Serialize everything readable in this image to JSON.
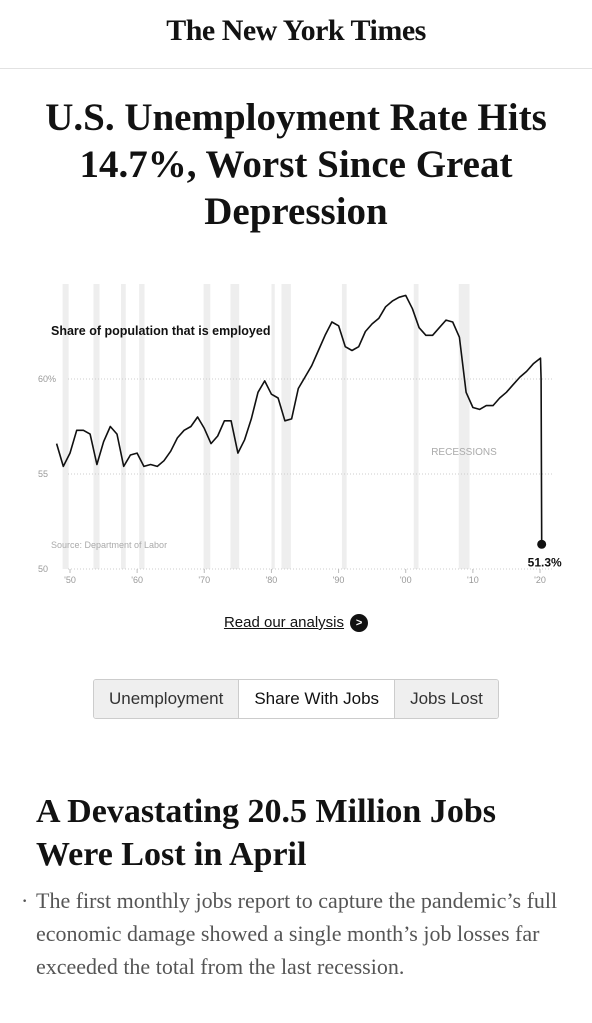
{
  "header": {
    "logo": "The New York Times"
  },
  "headline": "U.S. Unemployment Rate Hits 14.7%, Worst Since Great Depression",
  "chart_data": {
    "type": "line",
    "chart_label": "Share of population that is employed",
    "source": "Source: Department of Labor",
    "recessions_label": "RECESSIONS",
    "x": [
      1948,
      1949,
      1950,
      1951,
      1952,
      1953,
      1954,
      1955,
      1956,
      1957,
      1958,
      1959,
      1960,
      1961,
      1962,
      1963,
      1964,
      1965,
      1966,
      1967,
      1968,
      1969,
      1970,
      1971,
      1972,
      1973,
      1974,
      1975,
      1976,
      1977,
      1978,
      1979,
      1980,
      1981,
      1982,
      1983,
      1984,
      1985,
      1986,
      1987,
      1988,
      1989,
      1990,
      1991,
      1992,
      1993,
      1994,
      1995,
      1996,
      1997,
      1998,
      1999,
      2000,
      2001,
      2002,
      2003,
      2004,
      2005,
      2006,
      2007,
      2008,
      2009,
      2010,
      2011,
      2012,
      2013,
      2014,
      2015,
      2016,
      2017,
      2018,
      2019,
      2020.08,
      2020.17,
      2020.25
    ],
    "series": [
      {
        "name": "Share of population that is employed",
        "color": "#111111",
        "values": [
          56.6,
          55.4,
          56.1,
          57.3,
          57.3,
          57.1,
          55.5,
          56.7,
          57.5,
          57.1,
          55.4,
          56.0,
          56.1,
          55.4,
          55.5,
          55.4,
          55.7,
          56.2,
          56.9,
          57.3,
          57.5,
          58.0,
          57.4,
          56.6,
          57.0,
          57.8,
          57.8,
          56.1,
          56.8,
          57.9,
          59.3,
          59.9,
          59.2,
          59.0,
          57.8,
          57.9,
          59.5,
          60.1,
          60.7,
          61.5,
          62.3,
          63.0,
          62.8,
          61.7,
          61.5,
          61.7,
          62.5,
          62.9,
          63.2,
          63.8,
          64.1,
          64.3,
          64.4,
          63.7,
          62.7,
          62.3,
          62.3,
          62.7,
          63.1,
          63.0,
          62.2,
          59.3,
          58.5,
          58.4,
          58.6,
          58.6,
          59.0,
          59.3,
          59.7,
          60.1,
          60.4,
          60.8,
          61.1,
          60.0,
          51.3
        ],
        "value_labels": [
          null,
          null,
          null,
          null,
          null,
          null,
          null,
          null,
          null,
          null,
          null,
          null,
          null,
          null,
          null,
          null,
          null,
          null,
          null,
          null,
          null,
          null,
          null,
          null,
          null,
          null,
          null,
          null,
          null,
          null,
          null,
          null,
          null,
          null,
          null,
          null,
          null,
          null,
          null,
          null,
          null,
          null,
          null,
          null,
          null,
          null,
          null,
          null,
          null,
          null,
          null,
          null,
          null,
          null,
          null,
          null,
          null,
          null,
          null,
          null,
          null,
          null,
          null,
          null,
          null,
          null,
          null,
          null,
          null,
          null,
          null,
          null,
          null,
          null,
          "51.3%"
        ]
      }
    ],
    "recessions": [
      [
        1948.9,
        1949.8
      ],
      [
        1953.5,
        1954.4
      ],
      [
        1957.6,
        1958.3
      ],
      [
        1960.3,
        1961.1
      ],
      [
        1969.9,
        1970.9
      ],
      [
        1973.9,
        1975.2
      ],
      [
        1980.0,
        1980.5
      ],
      [
        1981.5,
        1982.9
      ],
      [
        1990.5,
        1991.2
      ],
      [
        2001.2,
        2001.9
      ],
      [
        2007.9,
        2009.5
      ]
    ],
    "recession_color": "#eeeeee",
    "xlim": [
      1947,
      2022
    ],
    "ylim": [
      50,
      65
    ],
    "yticks": [
      50,
      55,
      {
        "value": 60,
        "label": "60%"
      }
    ],
    "xticks": [
      {
        "value": 1950,
        "label": "'50"
      },
      {
        "value": 1960,
        "label": "'60"
      },
      {
        "value": 1970,
        "label": "'70"
      },
      {
        "value": 1980,
        "label": "'80"
      },
      {
        "value": 1990,
        "label": "'90"
      },
      {
        "value": 2000,
        "label": "'00"
      },
      {
        "value": 2010,
        "label": "'10"
      },
      {
        "value": 2020,
        "label": "'20"
      }
    ],
    "grid": true
  },
  "link": "Read our analysis",
  "tabs": [
    "Unemployment",
    "Share With Jobs",
    "Jobs Lost"
  ],
  "selected_tab": 1,
  "article": {
    "title": "A Devastating 20.5 Million Jobs Were Lost in April",
    "summary": "The first monthly jobs report to capture the pandemic’s full economic damage showed a single month’s job losses far exceeded the total from the last recession."
  }
}
